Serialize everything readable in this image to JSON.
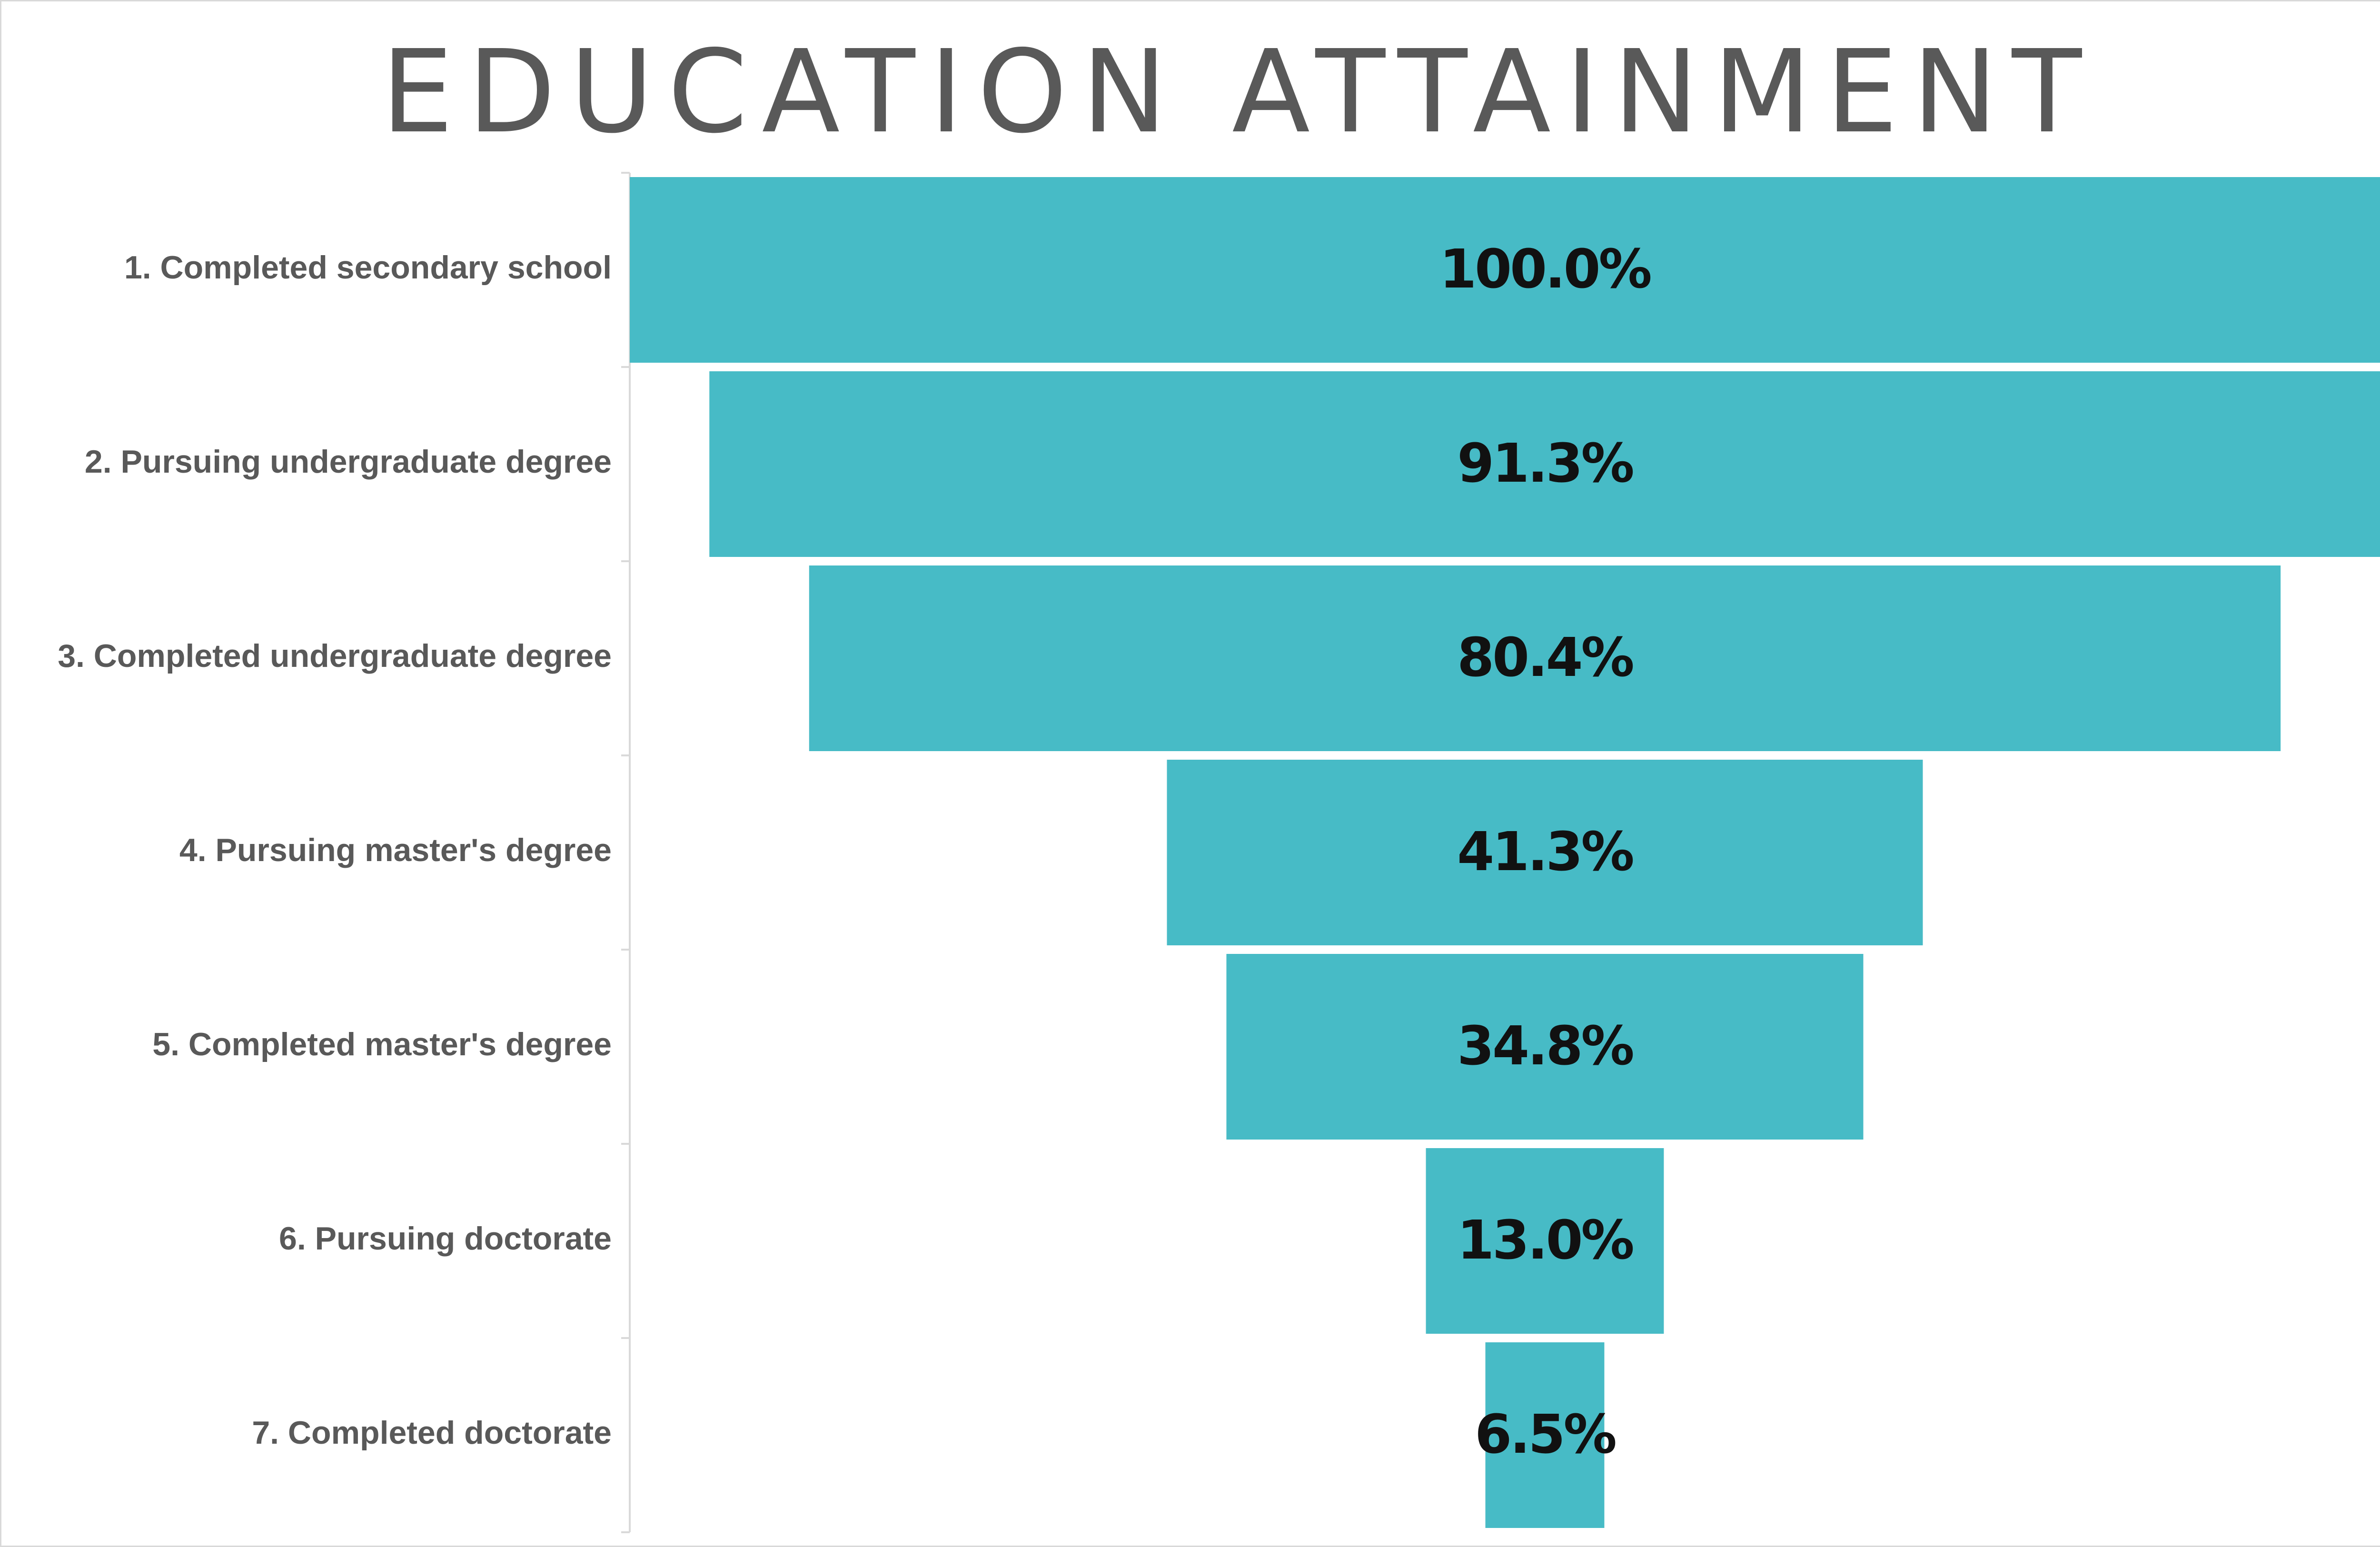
{
  "chart_data": {
    "type": "bar",
    "subtype": "funnel",
    "title": "EDUCATION ATTAINMENT",
    "categories": [
      "1. Completed secondary school",
      "2. Pursuing undergraduate degree",
      "3. Completed undergraduate degree",
      "4. Pursuing master's degree",
      "5. Completed master's degree",
      "6. Pursuing doctorate",
      "7. Completed doctorate"
    ],
    "values": [
      100.0,
      91.3,
      80.4,
      41.3,
      34.8,
      13.0,
      6.5
    ],
    "value_labels": [
      "100.0%",
      "91.3%",
      "80.4%",
      "41.3%",
      "34.8%",
      "13.0%",
      "6.5%"
    ],
    "xlim": [
      0,
      100
    ],
    "bar_color": "#47bbc6",
    "grid": false,
    "legend": "none"
  }
}
